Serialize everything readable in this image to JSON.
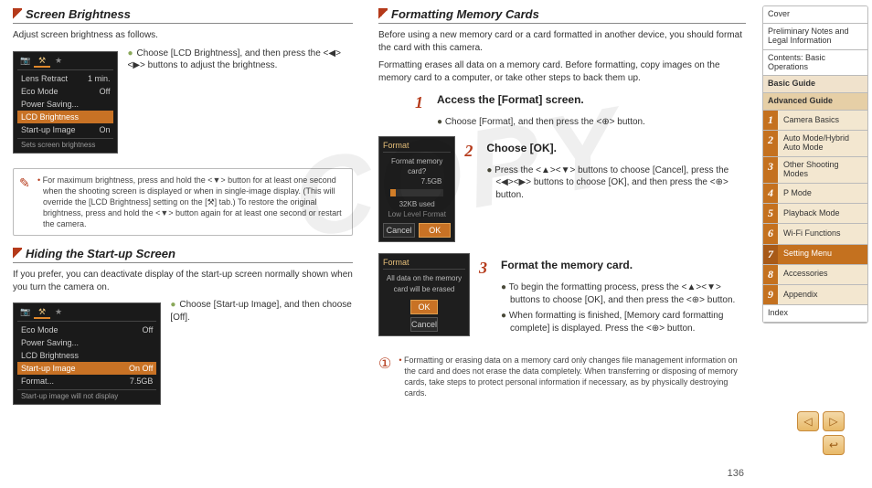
{
  "left": {
    "sec1": {
      "title": "Screen Brightness",
      "intro": "Adjust screen brightness as follows.",
      "cam": {
        "rows": [
          {
            "l": "Lens Retract",
            "r": "1 min."
          },
          {
            "l": "Eco Mode",
            "r": "Off"
          },
          {
            "l": "Power Saving...",
            "r": ""
          },
          {
            "l": "LCD Brightness",
            "r": ""
          },
          {
            "l": "Start-up Image",
            "r": "On"
          }
        ],
        "hlIndex": 3,
        "foot": "Sets screen brightness"
      },
      "bullet": "Choose [LCD Brightness], and then press the <◀><▶> buttons to adjust the brightness."
    },
    "note": "For maximum brightness, press and hold the <▼> button for at least one second when the shooting screen is displayed or when in single-image display. (This will override the [LCD Brightness] setting on the [⚒] tab.) To restore the original brightness, press and hold the <▼> button again for at least one second or restart the camera.",
    "sec2": {
      "title": "Hiding the Start-up Screen",
      "intro": "If you prefer, you can deactivate display of the start-up screen normally shown when you turn the camera on.",
      "cam": {
        "rows": [
          {
            "l": "Eco Mode",
            "r": "Off"
          },
          {
            "l": "Power Saving...",
            "r": ""
          },
          {
            "l": "LCD Brightness",
            "r": ""
          },
          {
            "l": "Start-up Image",
            "r": "On  Off"
          },
          {
            "l": "Format...",
            "r": "7.5GB"
          }
        ],
        "hlIndex": 3,
        "foot": "Start-up image will not display"
      },
      "bullet": "Choose [Start-up Image], and then choose [Off]."
    }
  },
  "right": {
    "sec": {
      "title": "Formatting Memory Cards",
      "intro1": "Before using a new memory card or a card formatted in another device, you should format the card with this camera.",
      "intro2": "Formatting erases all data on a memory card. Before formatting, copy images on the memory card to a computer, or take other steps to back them up."
    },
    "step1": {
      "n": "1",
      "t": "Access the [Format] screen.",
      "b": "Choose [Format], and then press the <⊕> button."
    },
    "dlg1": {
      "title": "Format",
      "line1": "Format memory card?",
      "size": "7.5GB",
      "used": "32KB used",
      "low": "Low Level Format",
      "cancel": "Cancel",
      "ok": "OK"
    },
    "step2": {
      "n": "2",
      "t": "Choose [OK].",
      "b": "Press the <▲><▼> buttons to choose [Cancel], press the <◀><▶> buttons to choose [OK], and then press the <⊕> button."
    },
    "dlg2": {
      "title": "Format",
      "line1": "All data on the memory",
      "line2": "card will be erased",
      "ok": "OK",
      "cancel": "Cancel"
    },
    "step3": {
      "n": "3",
      "t": "Format the memory card.",
      "b1": "To begin the formatting process, press the <▲><▼> buttons to choose [OK], and then press the <⊕> button.",
      "b2": "When formatting is finished, [Memory card formatting complete] is displayed. Press the <⊕> button."
    },
    "warn": "Formatting or erasing data on a memory card only changes file management information on the card and does not erase the data completely. When transferring or disposing of memory cards, take steps to protect personal information if necessary, as by physically destroying cards."
  },
  "nav": {
    "top": [
      "Cover",
      "Preliminary Notes and Legal Information",
      "Contents: Basic Operations"
    ],
    "guides": [
      "Basic Guide",
      "Advanced Guide"
    ],
    "chapters": [
      {
        "n": "1",
        "t": "Camera Basics"
      },
      {
        "n": "2",
        "t": "Auto Mode/Hybrid Auto Mode"
      },
      {
        "n": "3",
        "t": "Other Shooting Modes"
      },
      {
        "n": "4",
        "t": "P Mode"
      },
      {
        "n": "5",
        "t": "Playback Mode"
      },
      {
        "n": "6",
        "t": "Wi-Fi Functions"
      },
      {
        "n": "7",
        "t": "Setting Menu"
      },
      {
        "n": "8",
        "t": "Accessories"
      },
      {
        "n": "9",
        "t": "Appendix"
      }
    ],
    "selected": 6,
    "index": "Index"
  },
  "pagenum": "136",
  "watermark": "COPY"
}
